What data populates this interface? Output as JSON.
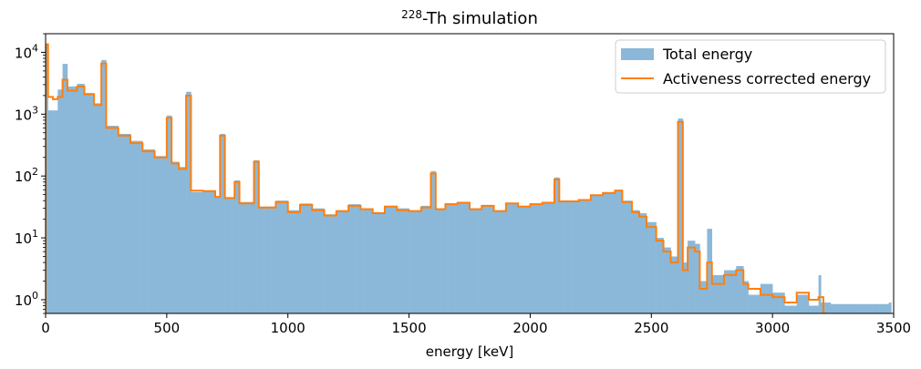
{
  "chart_data": {
    "type": "histogram",
    "title": {
      "superscript": "228",
      "text": "-Th simulation"
    },
    "xlabel": "energy [keV]",
    "ylabel": "",
    "xlim": [
      0,
      3500
    ],
    "ylim": [
      0.6,
      20000
    ],
    "yscale": "log",
    "grid": false,
    "legend_position": "top-right",
    "x_ticks": [
      0,
      500,
      1000,
      1500,
      2000,
      2500,
      3000,
      3500
    ],
    "y_ticks": [
      {
        "value": 1,
        "base": "10",
        "exp": "0"
      },
      {
        "value": 10,
        "base": "10",
        "exp": "1"
      },
      {
        "value": 100,
        "base": "10",
        "exp": "2"
      },
      {
        "value": 1000,
        "base": "10",
        "exp": "3"
      },
      {
        "value": 10000,
        "base": "10",
        "exp": "4"
      }
    ],
    "bin_width": 10,
    "series": [
      {
        "name": "Total energy",
        "style": "filled-step",
        "color": "#8bb8d9",
        "points": [
          [
            0,
            13000
          ],
          [
            10,
            1150
          ],
          [
            50,
            2500
          ],
          [
            70,
            6500
          ],
          [
            90,
            2800
          ],
          [
            130,
            3100
          ],
          [
            160,
            2200
          ],
          [
            200,
            1500
          ],
          [
            230,
            7500
          ],
          [
            250,
            650
          ],
          [
            300,
            480
          ],
          [
            350,
            370
          ],
          [
            400,
            270
          ],
          [
            450,
            210
          ],
          [
            500,
            950
          ],
          [
            520,
            170
          ],
          [
            550,
            140
          ],
          [
            580,
            2300
          ],
          [
            600,
            55
          ],
          [
            650,
            58
          ],
          [
            700,
            47
          ],
          [
            720,
            480
          ],
          [
            740,
            45
          ],
          [
            780,
            85
          ],
          [
            800,
            38
          ],
          [
            860,
            180
          ],
          [
            880,
            32
          ],
          [
            950,
            40
          ],
          [
            1000,
            28
          ],
          [
            1050,
            36
          ],
          [
            1100,
            30
          ],
          [
            1150,
            24
          ],
          [
            1200,
            28
          ],
          [
            1250,
            35
          ],
          [
            1300,
            30
          ],
          [
            1350,
            26
          ],
          [
            1400,
            33
          ],
          [
            1450,
            30
          ],
          [
            1500,
            28
          ],
          [
            1550,
            33
          ],
          [
            1590,
            120
          ],
          [
            1610,
            30
          ],
          [
            1650,
            36
          ],
          [
            1700,
            38
          ],
          [
            1750,
            30
          ],
          [
            1800,
            34
          ],
          [
            1850,
            28
          ],
          [
            1900,
            37
          ],
          [
            1950,
            33
          ],
          [
            2000,
            36
          ],
          [
            2050,
            38
          ],
          [
            2100,
            95
          ],
          [
            2120,
            40
          ],
          [
            2200,
            42
          ],
          [
            2250,
            50
          ],
          [
            2300,
            55
          ],
          [
            2350,
            60
          ],
          [
            2380,
            40
          ],
          [
            2420,
            28
          ],
          [
            2450,
            25
          ],
          [
            2480,
            18
          ],
          [
            2520,
            10
          ],
          [
            2550,
            7
          ],
          [
            2580,
            5
          ],
          [
            2610,
            850
          ],
          [
            2630,
            4
          ],
          [
            2650,
            9
          ],
          [
            2680,
            8
          ],
          [
            2700,
            2
          ],
          [
            2730,
            14
          ],
          [
            2750,
            2.5
          ],
          [
            2800,
            3
          ],
          [
            2850,
            3.5
          ],
          [
            2880,
            2
          ],
          [
            2900,
            1.2
          ],
          [
            2950,
            1.8
          ],
          [
            3000,
            1.3
          ],
          [
            3050,
            0.8
          ],
          [
            3100,
            1.2
          ],
          [
            3150,
            0.8
          ],
          [
            3190,
            2.5
          ],
          [
            3200,
            0.9
          ],
          [
            3240,
            0.85
          ],
          [
            3300,
            0.85
          ],
          [
            3480,
            0.9
          ]
        ]
      },
      {
        "name": "Activeness corrected energy",
        "style": "step-line",
        "color": "#ff7f0e",
        "points": [
          [
            0,
            13500
          ],
          [
            10,
            1900
          ],
          [
            30,
            1750
          ],
          [
            50,
            1900
          ],
          [
            70,
            3600
          ],
          [
            90,
            2400
          ],
          [
            130,
            2800
          ],
          [
            160,
            2100
          ],
          [
            200,
            1400
          ],
          [
            230,
            6600
          ],
          [
            250,
            600
          ],
          [
            300,
            450
          ],
          [
            350,
            340
          ],
          [
            400,
            250
          ],
          [
            450,
            200
          ],
          [
            500,
            870
          ],
          [
            520,
            160
          ],
          [
            550,
            130
          ],
          [
            580,
            2000
          ],
          [
            600,
            58
          ],
          [
            650,
            57
          ],
          [
            700,
            46
          ],
          [
            720,
            450
          ],
          [
            740,
            44
          ],
          [
            780,
            80
          ],
          [
            800,
            36
          ],
          [
            860,
            170
          ],
          [
            880,
            31
          ],
          [
            950,
            38
          ],
          [
            1000,
            26
          ],
          [
            1050,
            34
          ],
          [
            1100,
            28
          ],
          [
            1150,
            23
          ],
          [
            1200,
            27
          ],
          [
            1250,
            33
          ],
          [
            1300,
            29
          ],
          [
            1350,
            25
          ],
          [
            1400,
            32
          ],
          [
            1450,
            28
          ],
          [
            1500,
            27
          ],
          [
            1550,
            31
          ],
          [
            1590,
            110
          ],
          [
            1610,
            29
          ],
          [
            1650,
            35
          ],
          [
            1700,
            37
          ],
          [
            1750,
            29
          ],
          [
            1800,
            33
          ],
          [
            1850,
            27
          ],
          [
            1900,
            36
          ],
          [
            1950,
            32
          ],
          [
            2000,
            35
          ],
          [
            2050,
            37
          ],
          [
            2100,
            88
          ],
          [
            2120,
            39
          ],
          [
            2200,
            41
          ],
          [
            2250,
            49
          ],
          [
            2300,
            53
          ],
          [
            2350,
            58
          ],
          [
            2380,
            38
          ],
          [
            2420,
            26
          ],
          [
            2450,
            22
          ],
          [
            2480,
            15
          ],
          [
            2520,
            9
          ],
          [
            2550,
            6
          ],
          [
            2580,
            4
          ],
          [
            2610,
            750
          ],
          [
            2630,
            3
          ],
          [
            2650,
            7
          ],
          [
            2680,
            6
          ],
          [
            2700,
            1.5
          ],
          [
            2730,
            4
          ],
          [
            2750,
            1.8
          ],
          [
            2800,
            2.5
          ],
          [
            2850,
            3
          ],
          [
            2880,
            1.8
          ],
          [
            2900,
            1.5
          ],
          [
            2950,
            1.2
          ],
          [
            3000,
            1.1
          ],
          [
            3050,
            0.9
          ],
          [
            3100,
            1.3
          ],
          [
            3150,
            1
          ],
          [
            3190,
            1.1
          ],
          [
            3210,
            0.6
          ]
        ]
      }
    ]
  }
}
